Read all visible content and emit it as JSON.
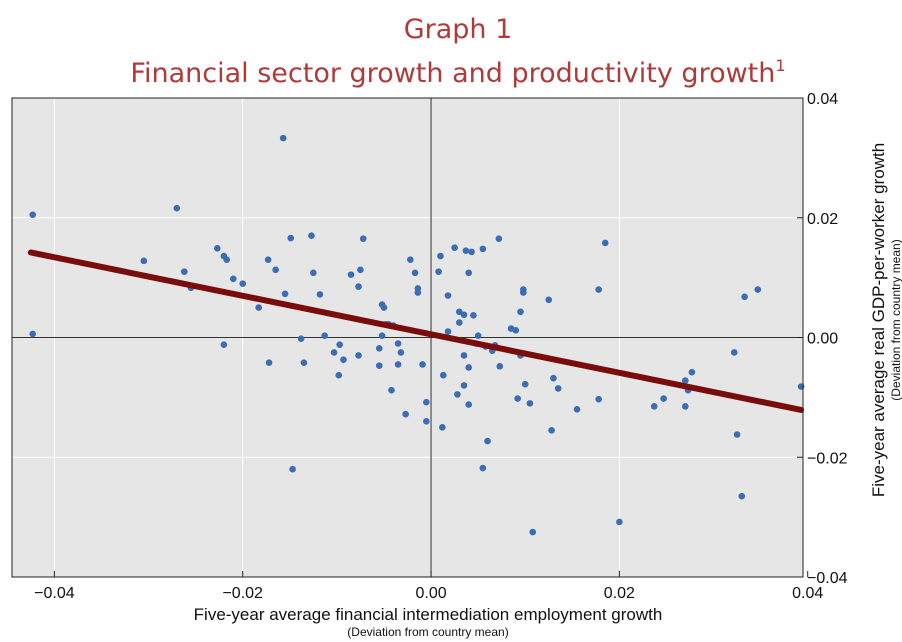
{
  "chart_data": {
    "type": "scatter",
    "title": "Graph 1",
    "subtitle": "Financial sector growth and productivity growth",
    "subtitle_superscript": "1",
    "xlabel": "Five-year average financial intermediation employment growth",
    "xlabel_note": "(Deviation from country mean)",
    "ylabel": "Five-year average real GDP-per-worker growth",
    "ylabel_note": "(Deviation from country mean)",
    "xlim": [
      -0.0445,
      0.0395
    ],
    "ylim": [
      -0.04,
      0.04
    ],
    "x_ticks": [
      -0.04,
      -0.02,
      0.0,
      0.02,
      0.04
    ],
    "x_tick_labels": [
      "−0.04",
      "−0.02",
      "0.00",
      "0.02",
      "0.04"
    ],
    "y_ticks": [
      -0.04,
      -0.02,
      0.0,
      0.02,
      0.04
    ],
    "y_tick_labels": [
      "−0.04",
      "−0.02",
      "0.00",
      "0.02",
      "0.04"
    ],
    "grid": true,
    "zero_lines": true,
    "point_color": "#3a6db5",
    "line_color": "#7b0c0c",
    "background_color": "#e6e6e6",
    "regression_line": {
      "x": [
        -0.0425,
        0.0393
      ],
      "y": [
        0.0142,
        -0.0121
      ]
    },
    "points": [
      [
        -0.0423,
        0.0205
      ],
      [
        -0.0423,
        0.0006
      ],
      [
        -0.0305,
        0.0128
      ],
      [
        -0.027,
        0.0216
      ],
      [
        -0.0262,
        0.011
      ],
      [
        -0.0255,
        0.0083
      ],
      [
        -0.0227,
        0.0149
      ],
      [
        -0.022,
        0.0136
      ],
      [
        -0.0217,
        0.013
      ],
      [
        -0.022,
        -0.0012
      ],
      [
        -0.021,
        0.0098
      ],
      [
        -0.02,
        0.009
      ],
      [
        -0.0183,
        0.005
      ],
      [
        -0.0173,
        0.013
      ],
      [
        -0.0172,
        -0.0042
      ],
      [
        -0.0165,
        0.0113
      ],
      [
        -0.0157,
        0.0333
      ],
      [
        -0.0155,
        0.0073
      ],
      [
        -0.0149,
        0.0166
      ],
      [
        -0.0147,
        -0.022
      ],
      [
        -0.0138,
        -0.0002
      ],
      [
        -0.0135,
        -0.0042
      ],
      [
        -0.0127,
        0.017
      ],
      [
        -0.0125,
        0.0108
      ],
      [
        -0.0118,
        0.0072
      ],
      [
        -0.0113,
        0.0003
      ],
      [
        -0.0103,
        -0.0025
      ],
      [
        -0.0098,
        -0.0063
      ],
      [
        -0.0097,
        -0.0012
      ],
      [
        -0.0093,
        -0.0037
      ],
      [
        -0.0085,
        0.0105
      ],
      [
        -0.0077,
        0.0085
      ],
      [
        -0.0077,
        -0.003
      ],
      [
        -0.0075,
        0.0113
      ],
      [
        -0.0072,
        0.0165
      ],
      [
        -0.0055,
        -0.0018
      ],
      [
        -0.0055,
        -0.0047
      ],
      [
        -0.0052,
        0.0003
      ],
      [
        -0.0052,
        0.0055
      ],
      [
        -0.005,
        0.005
      ],
      [
        -0.0048,
        0.0022
      ],
      [
        -0.0045,
        0.0022
      ],
      [
        -0.0042,
        -0.0088
      ],
      [
        -0.004,
        0.002
      ],
      [
        -0.0035,
        -0.001
      ],
      [
        -0.0035,
        -0.0045
      ],
      [
        -0.0032,
        -0.0025
      ],
      [
        -0.0027,
        -0.0128
      ],
      [
        -0.0022,
        0.013
      ],
      [
        -0.0017,
        0.0108
      ],
      [
        -0.0014,
        0.0082
      ],
      [
        -0.0014,
        0.0075
      ],
      [
        -0.0009,
        -0.0045
      ],
      [
        -0.0005,
        -0.0108
      ],
      [
        -0.0005,
        -0.014
      ],
      [
        0.0008,
        0.011
      ],
      [
        0.001,
        0.0136
      ],
      [
        0.0012,
        -0.015
      ],
      [
        0.0013,
        -0.0063
      ],
      [
        0.0018,
        0.007
      ],
      [
        0.0018,
        0.001
      ],
      [
        0.0025,
        0.015
      ],
      [
        0.0028,
        -0.0095
      ],
      [
        0.003,
        0.0043
      ],
      [
        0.003,
        0.0025
      ],
      [
        0.0035,
        0.0038
      ],
      [
        0.0035,
        -0.003
      ],
      [
        0.0035,
        -0.008
      ],
      [
        0.0037,
        0.0145
      ],
      [
        0.004,
        0.0108
      ],
      [
        0.004,
        -0.005
      ],
      [
        0.004,
        -0.0112
      ],
      [
        0.0043,
        0.0143
      ],
      [
        0.0045,
        0.0037
      ],
      [
        0.0048,
        -0.001
      ],
      [
        0.005,
        0.0003
      ],
      [
        0.0055,
        0.0148
      ],
      [
        0.0055,
        -0.0218
      ],
      [
        0.0058,
        -0.0015
      ],
      [
        0.006,
        -0.0173
      ],
      [
        0.0065,
        -0.0022
      ],
      [
        0.0068,
        -0.0013
      ],
      [
        0.0072,
        0.0165
      ],
      [
        0.0073,
        -0.0048
      ],
      [
        0.0085,
        0.0015
      ],
      [
        0.009,
        0.0012
      ],
      [
        0.0092,
        -0.0102
      ],
      [
        0.0095,
        0.0043
      ],
      [
        0.0095,
        -0.003
      ],
      [
        0.0098,
        0.008
      ],
      [
        0.0098,
        0.0075
      ],
      [
        0.01,
        -0.0078
      ],
      [
        0.0105,
        -0.011
      ],
      [
        0.0108,
        -0.0325
      ],
      [
        0.0125,
        0.0063
      ],
      [
        0.0128,
        -0.0155
      ],
      [
        0.013,
        -0.0068
      ],
      [
        0.0135,
        -0.0085
      ],
      [
        0.0155,
        -0.012
      ],
      [
        0.0178,
        0.008
      ],
      [
        0.0178,
        -0.0103
      ],
      [
        0.0185,
        0.0158
      ],
      [
        0.02,
        -0.0308
      ],
      [
        0.0237,
        -0.0115
      ],
      [
        0.0247,
        -0.0102
      ],
      [
        0.027,
        -0.0072
      ],
      [
        0.027,
        -0.0115
      ],
      [
        0.0273,
        -0.0088
      ],
      [
        0.0277,
        -0.0058
      ],
      [
        0.0322,
        -0.0025
      ],
      [
        0.0325,
        -0.0162
      ],
      [
        0.033,
        -0.0265
      ],
      [
        0.0333,
        0.0068
      ],
      [
        0.0347,
        0.008
      ],
      [
        0.0393,
        -0.0082
      ]
    ]
  }
}
